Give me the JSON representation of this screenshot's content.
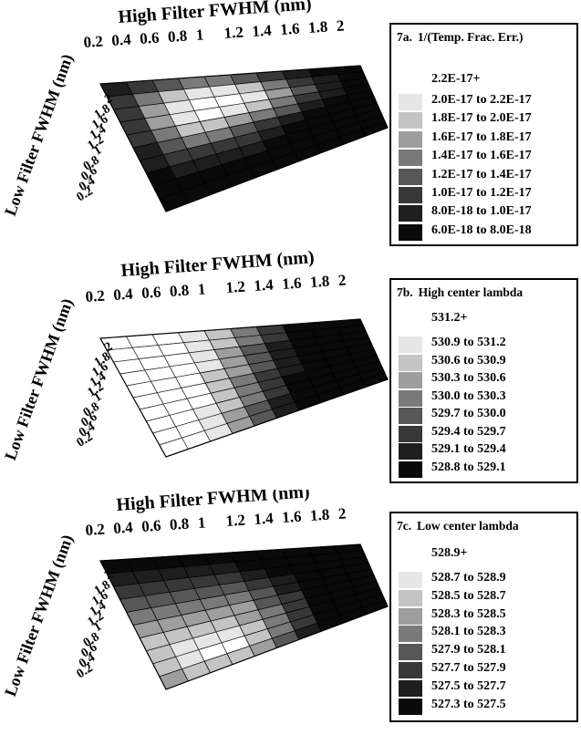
{
  "chart_data": [
    {
      "id": "7a",
      "type": "heatmap",
      "title_tag": "7a.",
      "legend_title": "1/(Temp. Frac. Err.)",
      "xlabel": "High Filter FWHM (nm)",
      "ylabel": "Low Filter FWHM (nm)",
      "x_ticks": [
        "0.2",
        "0.4",
        "0.6",
        "0.8",
        "1",
        "1.2",
        "1.4",
        "1.6",
        "1.8",
        "2"
      ],
      "y_ticks": [
        "2",
        "1.8",
        "1.6",
        "1.4",
        "1.2",
        "1",
        "0.8",
        "0.6",
        "0.4",
        "0.2"
      ],
      "levels": [
        "2.2E-17+",
        "2.0E-17 to 2.2E-17",
        "1.8E-17 to 2.0E-17",
        "1.6E-17 to 1.8E-17",
        "1.4E-17 to 1.6E-17",
        "1.2E-17 to 1.4E-17",
        "1.0E-17 to 1.2E-17",
        "8.0E-18 to 1.0E-17",
        "6.0E-18 to 8.0E-18"
      ],
      "level_colors": [
        "#ffffff",
        "#e6e6e6",
        "#c4c4c4",
        "#9e9e9e",
        "#7a7a7a",
        "#575757",
        "#383838",
        "#1e1e1e",
        "#0a0a0a"
      ],
      "z_level_index": [
        [
          7,
          6,
          5,
          4,
          4,
          5,
          6,
          7,
          8,
          8
        ],
        [
          6,
          4,
          2,
          1,
          1,
          2,
          4,
          6,
          7,
          8
        ],
        [
          6,
          3,
          1,
          0,
          0,
          1,
          3,
          5,
          7,
          8
        ],
        [
          6,
          3,
          1,
          0,
          1,
          2,
          4,
          6,
          7,
          8
        ],
        [
          6,
          4,
          2,
          2,
          3,
          4,
          5,
          7,
          8,
          8
        ],
        [
          7,
          5,
          4,
          4,
          5,
          6,
          7,
          8,
          8,
          8
        ],
        [
          7,
          6,
          6,
          6,
          6,
          7,
          8,
          8,
          8,
          8
        ],
        [
          8,
          7,
          7,
          7,
          7,
          8,
          8,
          8,
          8,
          8
        ],
        [
          8,
          8,
          8,
          8,
          8,
          8,
          8,
          8,
          8,
          8
        ],
        [
          8,
          8,
          8,
          8,
          8,
          8,
          8,
          8,
          8,
          8
        ]
      ]
    },
    {
      "id": "7b",
      "type": "heatmap",
      "title_tag": "7b.",
      "legend_title": "High center lambda",
      "xlabel": "High Filter FWHM (nm)",
      "ylabel": "Low Filter FWHM (nm)",
      "x_ticks": [
        "0.2",
        "0.4",
        "0.6",
        "0.8",
        "1",
        "1.2",
        "1.4",
        "1.6",
        "1.8",
        "2"
      ],
      "y_ticks": [
        "2",
        "1.8",
        "1.6",
        "1.4",
        "1.2",
        "1",
        "0.8",
        "0.6",
        "0.4",
        "0.2"
      ],
      "levels": [
        "531.2+",
        "530.9 to 531.2",
        "530.6 to 530.9",
        "530.3 to 530.6",
        "530.0 to 530.3",
        "529.7 to 530.0",
        "529.4 to 529.7",
        "529.1 to 529.4",
        "528.8 to 529.1"
      ],
      "level_colors": [
        "#ffffff",
        "#e6e6e6",
        "#c4c4c4",
        "#9e9e9e",
        "#7a7a7a",
        "#575757",
        "#383838",
        "#1e1e1e",
        "#0a0a0a"
      ],
      "z_level_index": [
        [
          0,
          0,
          0,
          1,
          2,
          4,
          6,
          8,
          8,
          8
        ],
        [
          0,
          0,
          0,
          1,
          2,
          4,
          6,
          8,
          8,
          8
        ],
        [
          0,
          0,
          0,
          1,
          3,
          5,
          7,
          8,
          8,
          8
        ],
        [
          0,
          0,
          0,
          1,
          3,
          5,
          7,
          8,
          8,
          8
        ],
        [
          0,
          0,
          0,
          2,
          3,
          5,
          7,
          8,
          8,
          8
        ],
        [
          0,
          0,
          0,
          2,
          4,
          6,
          7,
          8,
          8,
          8
        ],
        [
          0,
          0,
          0,
          2,
          4,
          6,
          8,
          8,
          8,
          8
        ],
        [
          0,
          0,
          1,
          2,
          4,
          6,
          8,
          8,
          8,
          8
        ],
        [
          0,
          0,
          1,
          3,
          5,
          7,
          8,
          8,
          8,
          8
        ],
        [
          0,
          0,
          1,
          3,
          5,
          7,
          8,
          8,
          8,
          8
        ]
      ]
    },
    {
      "id": "7c",
      "type": "heatmap",
      "title_tag": "7c.",
      "legend_title": "Low center lambda",
      "xlabel": "High Filter FWHM (nm)",
      "ylabel": "Low Filter FWHM (nm)",
      "x_ticks": [
        "0.2",
        "0.4",
        "0.6",
        "0.8",
        "1",
        "1.2",
        "1.4",
        "1.6",
        "1.8",
        "2"
      ],
      "y_ticks": [
        "2",
        "1.8",
        "1.6",
        "1.4",
        "1.2",
        "1",
        "0.8",
        "0.6",
        "0.4",
        "0.2"
      ],
      "levels": [
        "528.9+",
        "528.7 to 528.9",
        "528.5 to 528.7",
        "528.3 to 528.5",
        "528.1 to 528.3",
        "527.9 to 528.1",
        "527.7 to 527.9",
        "527.5 to 527.7",
        "527.3 to 527.5"
      ],
      "level_colors": [
        "#ffffff",
        "#e6e6e6",
        "#c4c4c4",
        "#9e9e9e",
        "#7a7a7a",
        "#575757",
        "#383838",
        "#1e1e1e",
        "#0a0a0a"
      ],
      "z_level_index": [
        [
          8,
          8,
          8,
          8,
          8,
          8,
          8,
          8,
          8,
          8
        ],
        [
          7,
          7,
          7,
          7,
          7,
          8,
          8,
          8,
          8,
          8
        ],
        [
          6,
          6,
          6,
          6,
          6,
          7,
          8,
          8,
          8,
          8
        ],
        [
          5,
          5,
          5,
          5,
          5,
          6,
          7,
          8,
          8,
          8
        ],
        [
          4,
          4,
          4,
          4,
          4,
          5,
          7,
          8,
          8,
          8
        ],
        [
          3,
          3,
          3,
          3,
          3,
          5,
          6,
          8,
          8,
          8
        ],
        [
          2,
          2,
          2,
          2,
          3,
          4,
          6,
          8,
          8,
          8
        ],
        [
          2,
          1,
          1,
          1,
          2,
          4,
          6,
          8,
          8,
          8
        ],
        [
          2,
          1,
          0,
          0,
          2,
          4,
          6,
          8,
          8,
          8
        ],
        [
          3,
          2,
          2,
          2,
          3,
          5,
          7,
          8,
          8,
          8
        ]
      ]
    }
  ]
}
